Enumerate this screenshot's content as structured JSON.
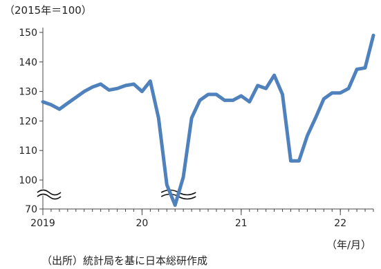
{
  "unit_label": "（2015年＝100）",
  "source_note": "（出所）統計局を基に日本総研作成",
  "period_label": "（年/月）",
  "chart_data": {
    "type": "line",
    "title": "",
    "xlabel": "",
    "ylabel": "",
    "axis_break": {
      "lower_tick": 70,
      "upper_start": 100,
      "shown": true
    },
    "y_ticks": [
      70,
      100,
      110,
      120,
      130,
      140,
      150
    ],
    "ylim": [
      70,
      150
    ],
    "x_tick_labels": [
      {
        "label": "2019",
        "index": 0
      },
      {
        "label": "20",
        "index": 12
      },
      {
        "label": "21",
        "index": 24
      },
      {
        "label": "22",
        "index": 36
      }
    ],
    "color": "#4F81BD",
    "series": [
      {
        "values": [
          126.5,
          125.5,
          124.0,
          126.0,
          128.0,
          130.0,
          131.5,
          132.5,
          130.5,
          131.0,
          132.0,
          132.5,
          130.0,
          133.5,
          121.0,
          95.0,
          74.0,
          101.0,
          121.0,
          127.0,
          129.0,
          129.0,
          127.0,
          127.0,
          128.5,
          126.5,
          132.0,
          131.0,
          135.5,
          129.0,
          106.5,
          106.5,
          115.0,
          121.0,
          127.5,
          129.5,
          129.5,
          131.0,
          137.5,
          138.0,
          149.0
        ]
      }
    ]
  }
}
